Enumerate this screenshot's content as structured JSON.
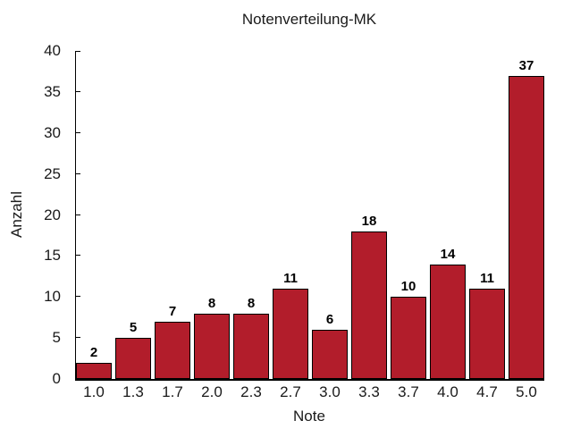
{
  "chart_data": {
    "type": "bar",
    "title": "Notenverteilung-MK",
    "xlabel": "Note",
    "ylabel": "Anzahl",
    "categories": [
      "1.0",
      "1.3",
      "1.7",
      "2.0",
      "2.3",
      "2.7",
      "3.0",
      "3.3",
      "3.7",
      "4.0",
      "4.7",
      "5.0"
    ],
    "values": [
      2,
      5,
      7,
      8,
      8,
      11,
      6,
      18,
      10,
      14,
      11,
      37
    ],
    "ylim": [
      0,
      40
    ],
    "ytick_step": 5,
    "yticks": [
      0,
      5,
      10,
      15,
      20,
      25,
      30,
      35,
      40
    ],
    "value_labels_shown": true,
    "grid": false,
    "legend": "none",
    "bar_color": "#B21D2B",
    "bar_border_color": "#000000",
    "axis_color": "#000000",
    "text_color": "#1a1a1a",
    "value_label_color": "#000000",
    "background_color": "#ffffff"
  }
}
